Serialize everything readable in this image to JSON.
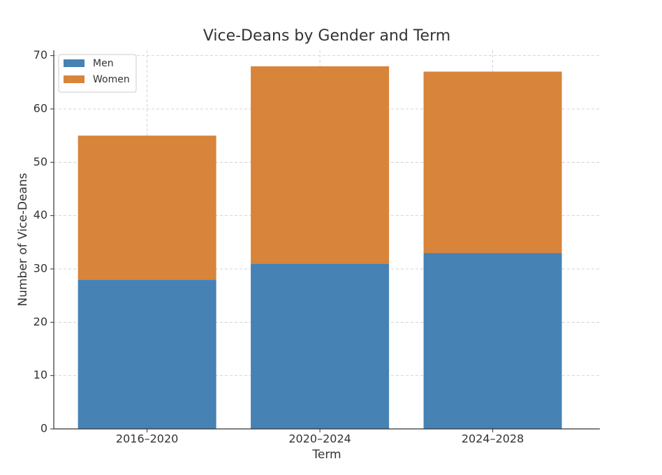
{
  "chart_data": {
    "type": "stacked_bar",
    "title": "Vice-Deans by Gender and Term",
    "x_label": "Term",
    "y_label": "Number of Vice-Deans",
    "categories": [
      "2016–2020",
      "2020–2024",
      "2024–2028"
    ],
    "series": [
      {
        "name": "Men",
        "color": "#4682b4",
        "values": [
          28,
          31,
          33
        ]
      },
      {
        "name": "Women",
        "color": "#d8843b",
        "values": [
          27,
          37,
          34
        ]
      }
    ],
    "ylim": [
      0,
      71
    ],
    "yticks": [
      0,
      10,
      20,
      30,
      40,
      50,
      60,
      70
    ],
    "grid": true,
    "legend": "upper-left"
  }
}
